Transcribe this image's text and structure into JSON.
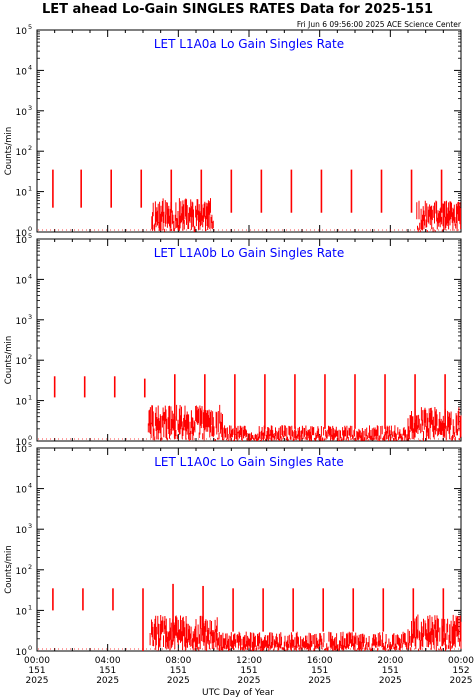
{
  "header": {
    "title": "LET ahead Lo-Gain SINGLES RATES Data for 2025-151",
    "timestamp": "Fri Jun  6 09:56:00 2025 ACE Science Center"
  },
  "chart_data": [
    {
      "type": "line",
      "title": "LET L1A0a Lo Gain Singles Rate",
      "title_color": "#0000ff",
      "series_color": "#ff0000",
      "ylabel": "Counts/min",
      "xlabel": "",
      "yscale": "log",
      "ylim": [
        1,
        100000
      ],
      "xlim": [
        0,
        24
      ],
      "grid": false,
      "spikes": [
        {
          "x": 0.9,
          "top": 35,
          "bottom": 4
        },
        {
          "x": 2.5,
          "top": 35,
          "bottom": 4
        },
        {
          "x": 4.2,
          "top": 35,
          "bottom": 4
        },
        {
          "x": 5.9,
          "top": 35,
          "bottom": 4
        },
        {
          "x": 7.6,
          "top": 35,
          "bottom": 3
        },
        {
          "x": 9.3,
          "top": 35,
          "bottom": 3
        },
        {
          "x": 11.0,
          "top": 35,
          "bottom": 3
        },
        {
          "x": 12.7,
          "top": 35,
          "bottom": 3
        },
        {
          "x": 14.4,
          "top": 35,
          "bottom": 3
        },
        {
          "x": 16.1,
          "top": 35,
          "bottom": 3
        },
        {
          "x": 17.8,
          "top": 35,
          "bottom": 3
        },
        {
          "x": 19.5,
          "top": 35,
          "bottom": 3
        },
        {
          "x": 21.2,
          "top": 35,
          "bottom": 3
        },
        {
          "x": 22.9,
          "top": 35,
          "bottom": 3
        }
      ],
      "noise_bands": [
        {
          "from": 6.5,
          "to": 10.0,
          "peak": 7
        },
        {
          "from": 21.5,
          "to": 24.0,
          "peak": 6
        }
      ],
      "baseline": 1,
      "seed": 11
    },
    {
      "type": "line",
      "title": "LET L1A0b Lo Gain Singles Rate",
      "title_color": "#0000ff",
      "series_color": "#ff0000",
      "ylabel": "Counts/min",
      "xlabel": "",
      "yscale": "log",
      "ylim": [
        1,
        100000
      ],
      "xlim": [
        0,
        24
      ],
      "grid": false,
      "spikes": [
        {
          "x": 1.0,
          "top": 40,
          "bottom": 12
        },
        {
          "x": 2.7,
          "top": 40,
          "bottom": 12
        },
        {
          "x": 4.4,
          "top": 40,
          "bottom": 12
        },
        {
          "x": 6.1,
          "top": 35,
          "bottom": 12
        },
        {
          "x": 7.8,
          "top": 45,
          "bottom": 2
        },
        {
          "x": 9.5,
          "top": 45,
          "bottom": 2
        },
        {
          "x": 11.2,
          "top": 45,
          "bottom": 2
        },
        {
          "x": 12.9,
          "top": 45,
          "bottom": 2
        },
        {
          "x": 14.6,
          "top": 45,
          "bottom": 2
        },
        {
          "x": 16.3,
          "top": 45,
          "bottom": 2
        },
        {
          "x": 18.0,
          "top": 45,
          "bottom": 2
        },
        {
          "x": 19.7,
          "top": 45,
          "bottom": 2
        },
        {
          "x": 21.4,
          "top": 45,
          "bottom": 2
        },
        {
          "x": 23.1,
          "top": 45,
          "bottom": 2
        }
      ],
      "noise_bands": [
        {
          "from": 6.3,
          "to": 10.5,
          "peak": 8
        },
        {
          "from": 10.5,
          "to": 21.0,
          "peak": 2.5
        },
        {
          "from": 21.0,
          "to": 24.0,
          "peak": 7
        }
      ],
      "baseline": 1,
      "seed": 29
    },
    {
      "type": "line",
      "title": "LET L1A0c Lo Gain Singles Rate",
      "title_color": "#0000ff",
      "series_color": "#ff0000",
      "ylabel": "Counts/min",
      "xlabel": "UTC Day of Year",
      "yscale": "log",
      "ylim": [
        1,
        100000
      ],
      "xlim": [
        0,
        24
      ],
      "grid": false,
      "spikes": [
        {
          "x": 0.9,
          "top": 35,
          "bottom": 10
        },
        {
          "x": 2.6,
          "top": 35,
          "bottom": 10
        },
        {
          "x": 4.3,
          "top": 35,
          "bottom": 10
        },
        {
          "x": 6.0,
          "top": 35,
          "bottom": 1
        },
        {
          "x": 7.7,
          "top": 45,
          "bottom": 3
        },
        {
          "x": 9.4,
          "top": 40,
          "bottom": 3
        },
        {
          "x": 11.1,
          "top": 35,
          "bottom": 3
        },
        {
          "x": 12.8,
          "top": 35,
          "bottom": 3
        },
        {
          "x": 14.5,
          "top": 35,
          "bottom": 3
        },
        {
          "x": 16.2,
          "top": 35,
          "bottom": 3
        },
        {
          "x": 17.9,
          "top": 35,
          "bottom": 3
        },
        {
          "x": 19.6,
          "top": 35,
          "bottom": 3
        },
        {
          "x": 21.3,
          "top": 35,
          "bottom": 3
        },
        {
          "x": 23.0,
          "top": 35,
          "bottom": 3
        }
      ],
      "noise_bands": [
        {
          "from": 6.4,
          "to": 10.2,
          "peak": 8
        },
        {
          "from": 10.2,
          "to": 21.0,
          "peak": 3
        },
        {
          "from": 21.0,
          "to": 24.0,
          "peak": 8
        }
      ],
      "baseline": 1,
      "seed": 47
    }
  ],
  "axes": {
    "y_tick_labels": [
      "10",
      "10",
      "10",
      "10",
      "10",
      "10"
    ],
    "y_tick_exponents": [
      "0",
      "1",
      "2",
      "3",
      "4",
      "5"
    ],
    "x_ticks": [
      {
        "hour": 0,
        "time": "00:00",
        "doy": "151",
        "year": "2025"
      },
      {
        "hour": 4,
        "time": "04:00",
        "doy": "151",
        "year": "2025"
      },
      {
        "hour": 8,
        "time": "08:00",
        "doy": "151",
        "year": "2025"
      },
      {
        "hour": 12,
        "time": "12:00",
        "doy": "151",
        "year": "2025"
      },
      {
        "hour": 16,
        "time": "16:00",
        "doy": "151",
        "year": "2025"
      },
      {
        "hour": 20,
        "time": "20:00",
        "doy": "151",
        "year": "2025"
      },
      {
        "hour": 24,
        "time": "00:00",
        "doy": "152",
        "year": "2025"
      }
    ]
  }
}
